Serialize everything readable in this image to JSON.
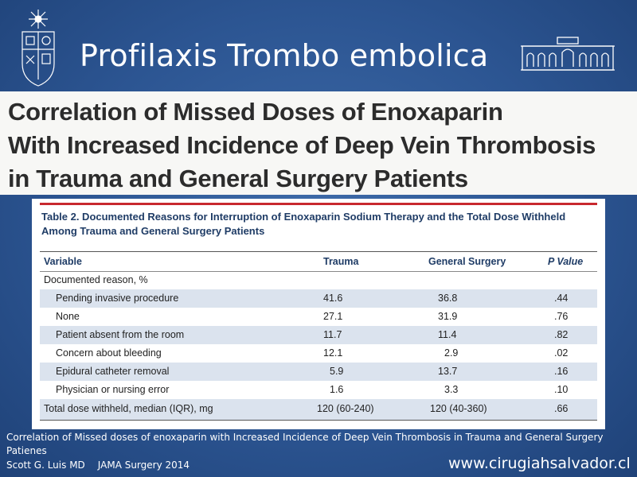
{
  "slide": {
    "title": "Profilaxis Trombo embolica",
    "banner_lines": [
      "Correlation of Missed Doses of Enoxaparin",
      "With Increased Incidence of Deep Vein Thrombosis",
      "in Trauma and General Surgery Patients"
    ]
  },
  "table": {
    "caption": "Table 2. Documented Reasons for Interruption of Enoxaparin Sodium Therapy and the Total Dose Withheld Among Trauma and General Surgery Patients",
    "headers": [
      "Variable",
      "Trauma",
      "General Surgery",
      "P Value"
    ],
    "section_label": "Documented reason, %",
    "rows": [
      {
        "variable": "Pending invasive procedure",
        "trauma": "41.6",
        "general_surgery": "36.8",
        "p_value": ".44"
      },
      {
        "variable": "None",
        "trauma": "27.1",
        "general_surgery": "31.9",
        "p_value": ".76"
      },
      {
        "variable": "Patient absent from the room",
        "trauma": "11.7",
        "general_surgery": "11.4",
        "p_value": ".82"
      },
      {
        "variable": "Concern about bleeding",
        "trauma": "12.1",
        "general_surgery": "2.9",
        "p_value": ".02"
      },
      {
        "variable": "Epidural catheter removal",
        "trauma": "5.9",
        "general_surgery": "13.7",
        "p_value": ".16"
      },
      {
        "variable": "Physician or nursing error",
        "trauma": "1.6",
        "general_surgery": "3.3",
        "p_value": ".10"
      }
    ],
    "total_row": {
      "variable": "Total dose withheld, median (IQR), mg",
      "trauma": "120 (60-240)",
      "general_surgery": "120 (40-360)",
      "p_value": ".66"
    }
  },
  "footer": {
    "reference": "Correlation of Missed doses of enoxaparin with Increased Incidence of Deep Vein Thrombosis in Trauma and General Surgery Patienes",
    "author": "Scott G. Luis MD",
    "journal": "JAMA Surgery 2014",
    "url": "www.cirugiahsalvador.cl"
  },
  "colors": {
    "background": "#2c5592",
    "accent_rule": "#c8282e",
    "shaded_row": "#dbe3ee",
    "caption_text": "#1f3c66"
  },
  "icons": [
    "university-crest-icon",
    "hospital-building-icon"
  ]
}
